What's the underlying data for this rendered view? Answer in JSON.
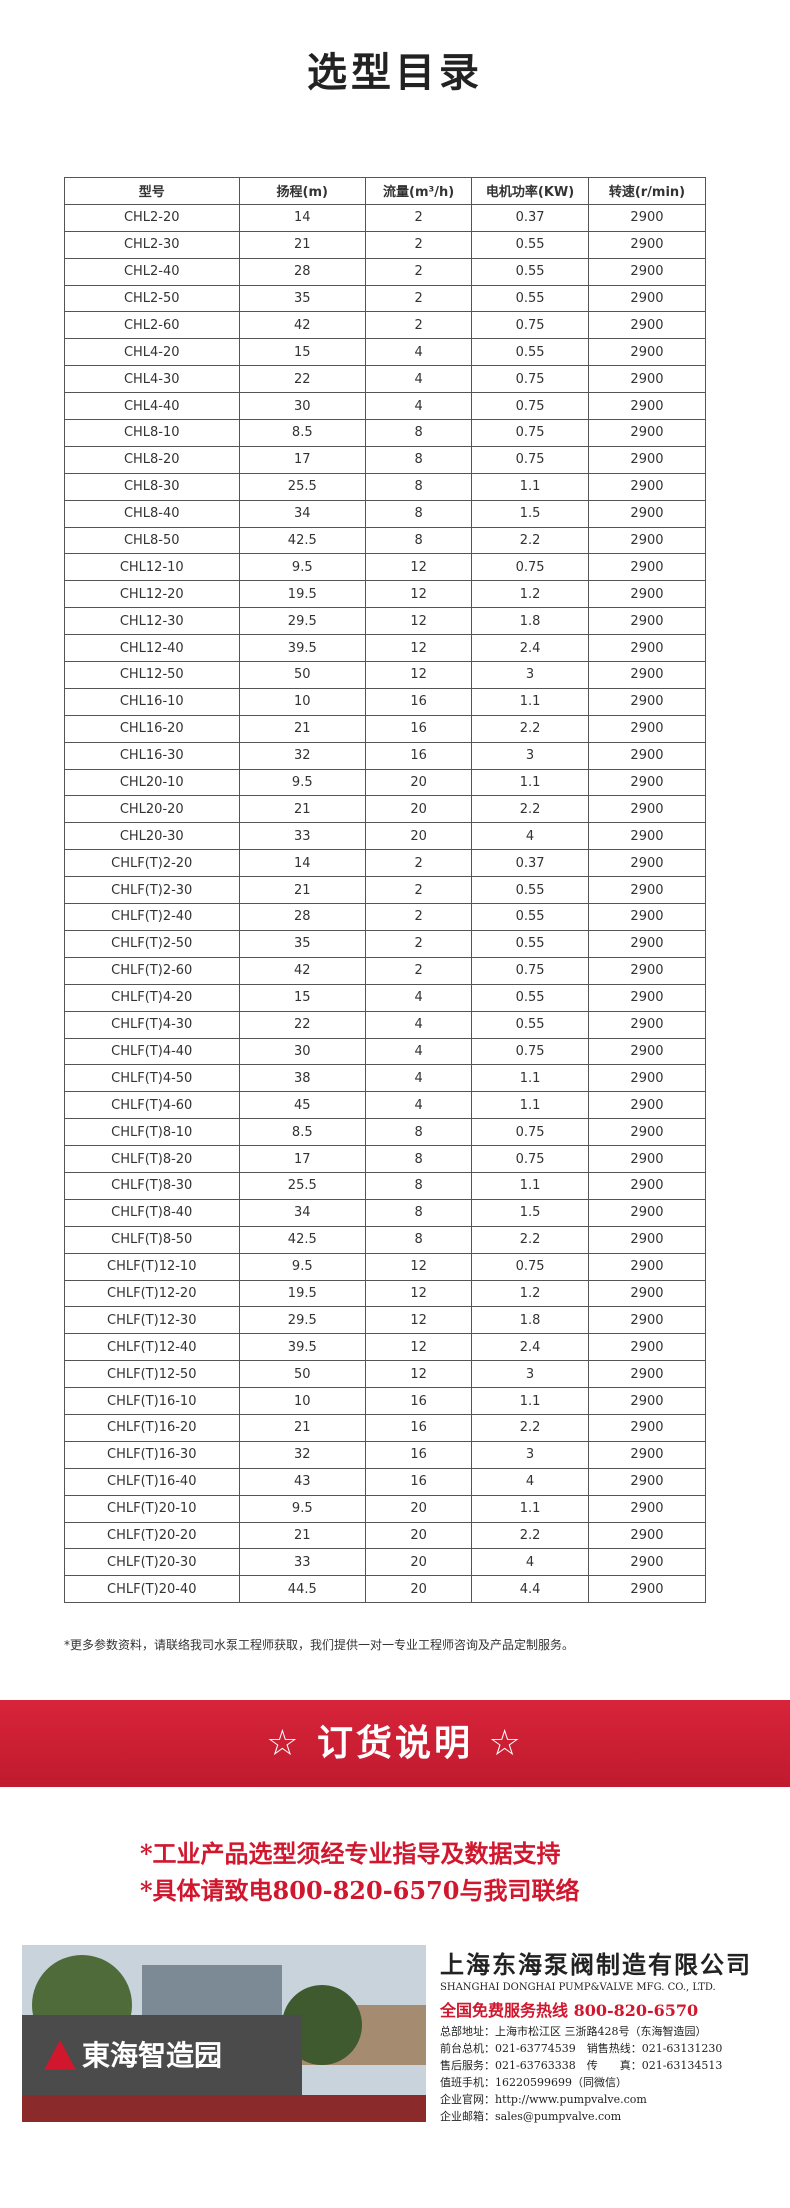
{
  "header": {
    "title": "选型目录"
  },
  "table": {
    "header": [
      "型号",
      "扬程(m)",
      "流量(m³/h)",
      "电机功率(KW)",
      "转速(r/min)"
    ],
    "rows": [
      [
        "CHL2-20",
        "14",
        "2",
        "0.37",
        "2900"
      ],
      [
        "CHL2-30",
        "21",
        "2",
        "0.55",
        "2900"
      ],
      [
        "CHL2-40",
        "28",
        "2",
        "0.55",
        "2900"
      ],
      [
        "CHL2-50",
        "35",
        "2",
        "0.55",
        "2900"
      ],
      [
        "CHL2-60",
        "42",
        "2",
        "0.75",
        "2900"
      ],
      [
        "CHL4-20",
        "15",
        "4",
        "0.55",
        "2900"
      ],
      [
        "CHL4-30",
        "22",
        "4",
        "0.75",
        "2900"
      ],
      [
        "CHL4-40",
        "30",
        "4",
        "0.75",
        "2900"
      ],
      [
        "CHL8-10",
        "8.5",
        "8",
        "0.75",
        "2900"
      ],
      [
        "CHL8-20",
        "17",
        "8",
        "0.75",
        "2900"
      ],
      [
        "CHL8-30",
        "25.5",
        "8",
        "1.1",
        "2900"
      ],
      [
        "CHL8-40",
        "34",
        "8",
        "1.5",
        "2900"
      ],
      [
        "CHL8-50",
        "42.5",
        "8",
        "2.2",
        "2900"
      ],
      [
        "CHL12-10",
        "9.5",
        "12",
        "0.75",
        "2900"
      ],
      [
        "CHL12-20",
        "19.5",
        "12",
        "1.2",
        "2900"
      ],
      [
        "CHL12-30",
        "29.5",
        "12",
        "1.8",
        "2900"
      ],
      [
        "CHL12-40",
        "39.5",
        "12",
        "2.4",
        "2900"
      ],
      [
        "CHL12-50",
        "50",
        "12",
        "3",
        "2900"
      ],
      [
        "CHL16-10",
        "10",
        "16",
        "1.1",
        "2900"
      ],
      [
        "CHL16-20",
        "21",
        "16",
        "2.2",
        "2900"
      ],
      [
        "CHL16-30",
        "32",
        "16",
        "3",
        "2900"
      ],
      [
        "CHL20-10",
        "9.5",
        "20",
        "1.1",
        "2900"
      ],
      [
        "CHL20-20",
        "21",
        "20",
        "2.2",
        "2900"
      ],
      [
        "CHL20-30",
        "33",
        "20",
        "4",
        "2900"
      ],
      [
        "CHLF(T)2-20",
        "14",
        "2",
        "0.37",
        "2900"
      ],
      [
        "CHLF(T)2-30",
        "21",
        "2",
        "0.55",
        "2900"
      ],
      [
        "CHLF(T)2-40",
        "28",
        "2",
        "0.55",
        "2900"
      ],
      [
        "CHLF(T)2-50",
        "35",
        "2",
        "0.55",
        "2900"
      ],
      [
        "CHLF(T)2-60",
        "42",
        "2",
        "0.75",
        "2900"
      ],
      [
        "CHLF(T)4-20",
        "15",
        "4",
        "0.55",
        "2900"
      ],
      [
        "CHLF(T)4-30",
        "22",
        "4",
        "0.55",
        "2900"
      ],
      [
        "CHLF(T)4-40",
        "30",
        "4",
        "0.75",
        "2900"
      ],
      [
        "CHLF(T)4-50",
        "38",
        "4",
        "1.1",
        "2900"
      ],
      [
        "CHLF(T)4-60",
        "45",
        "4",
        "1.1",
        "2900"
      ],
      [
        "CHLF(T)8-10",
        "8.5",
        "8",
        "0.75",
        "2900"
      ],
      [
        "CHLF(T)8-20",
        "17",
        "8",
        "0.75",
        "2900"
      ],
      [
        "CHLF(T)8-30",
        "25.5",
        "8",
        "1.1",
        "2900"
      ],
      [
        "CHLF(T)8-40",
        "34",
        "8",
        "1.5",
        "2900"
      ],
      [
        "CHLF(T)8-50",
        "42.5",
        "8",
        "2.2",
        "2900"
      ],
      [
        "CHLF(T)12-10",
        "9.5",
        "12",
        "0.75",
        "2900"
      ],
      [
        "CHLF(T)12-20",
        "19.5",
        "12",
        "1.2",
        "2900"
      ],
      [
        "CHLF(T)12-30",
        "29.5",
        "12",
        "1.8",
        "2900"
      ],
      [
        "CHLF(T)12-40",
        "39.5",
        "12",
        "2.4",
        "2900"
      ],
      [
        "CHLF(T)12-50",
        "50",
        "12",
        "3",
        "2900"
      ],
      [
        "CHLF(T)16-10",
        "10",
        "16",
        "1.1",
        "2900"
      ],
      [
        "CHLF(T)16-20",
        "21",
        "16",
        "2.2",
        "2900"
      ],
      [
        "CHLF(T)16-30",
        "32",
        "16",
        "3",
        "2900"
      ],
      [
        "CHLF(T)16-40",
        "43",
        "16",
        "4",
        "2900"
      ],
      [
        "CHLF(T)20-10",
        "9.5",
        "20",
        "1.1",
        "2900"
      ],
      [
        "CHLF(T)20-20",
        "21",
        "20",
        "2.2",
        "2900"
      ],
      [
        "CHLF(T)20-30",
        "33",
        "20",
        "4",
        "2900"
      ],
      [
        "CHLF(T)20-40",
        "44.5",
        "20",
        "4.4",
        "2900"
      ]
    ]
  },
  "note": "*更多参数资料，请联络我司水泵工程师获取，我们提供一对一专业工程师咨询及产品定制服务。",
  "banner": {
    "title": "☆ 订货说明 ☆"
  },
  "order_notes": [
    "*工业产品选型须经专业指导及数据支持",
    "*具体请致电800-820-6570与我司联络"
  ],
  "company": {
    "sign": "東海智造园",
    "name": "上海东海泵阀制造有限公司",
    "name_en": "SHANGHAI DONGHAI PUMP&VALVE MFG. CO., LTD.",
    "hotline": "全国免费服务热线 800-820-6570",
    "lines": [
      "总部地址：上海市松江区 三浙路428号（东海智造园）",
      "前台总机：021-63774539　销售热线：021-63131230",
      "售后服务：021-63763338　传　　真：021-63134513",
      "值班手机：16220599699（同微信）",
      "企业官网：http://www.pumpvalve.com",
      "企业邮箱：sales@pumpvalve.com"
    ]
  }
}
